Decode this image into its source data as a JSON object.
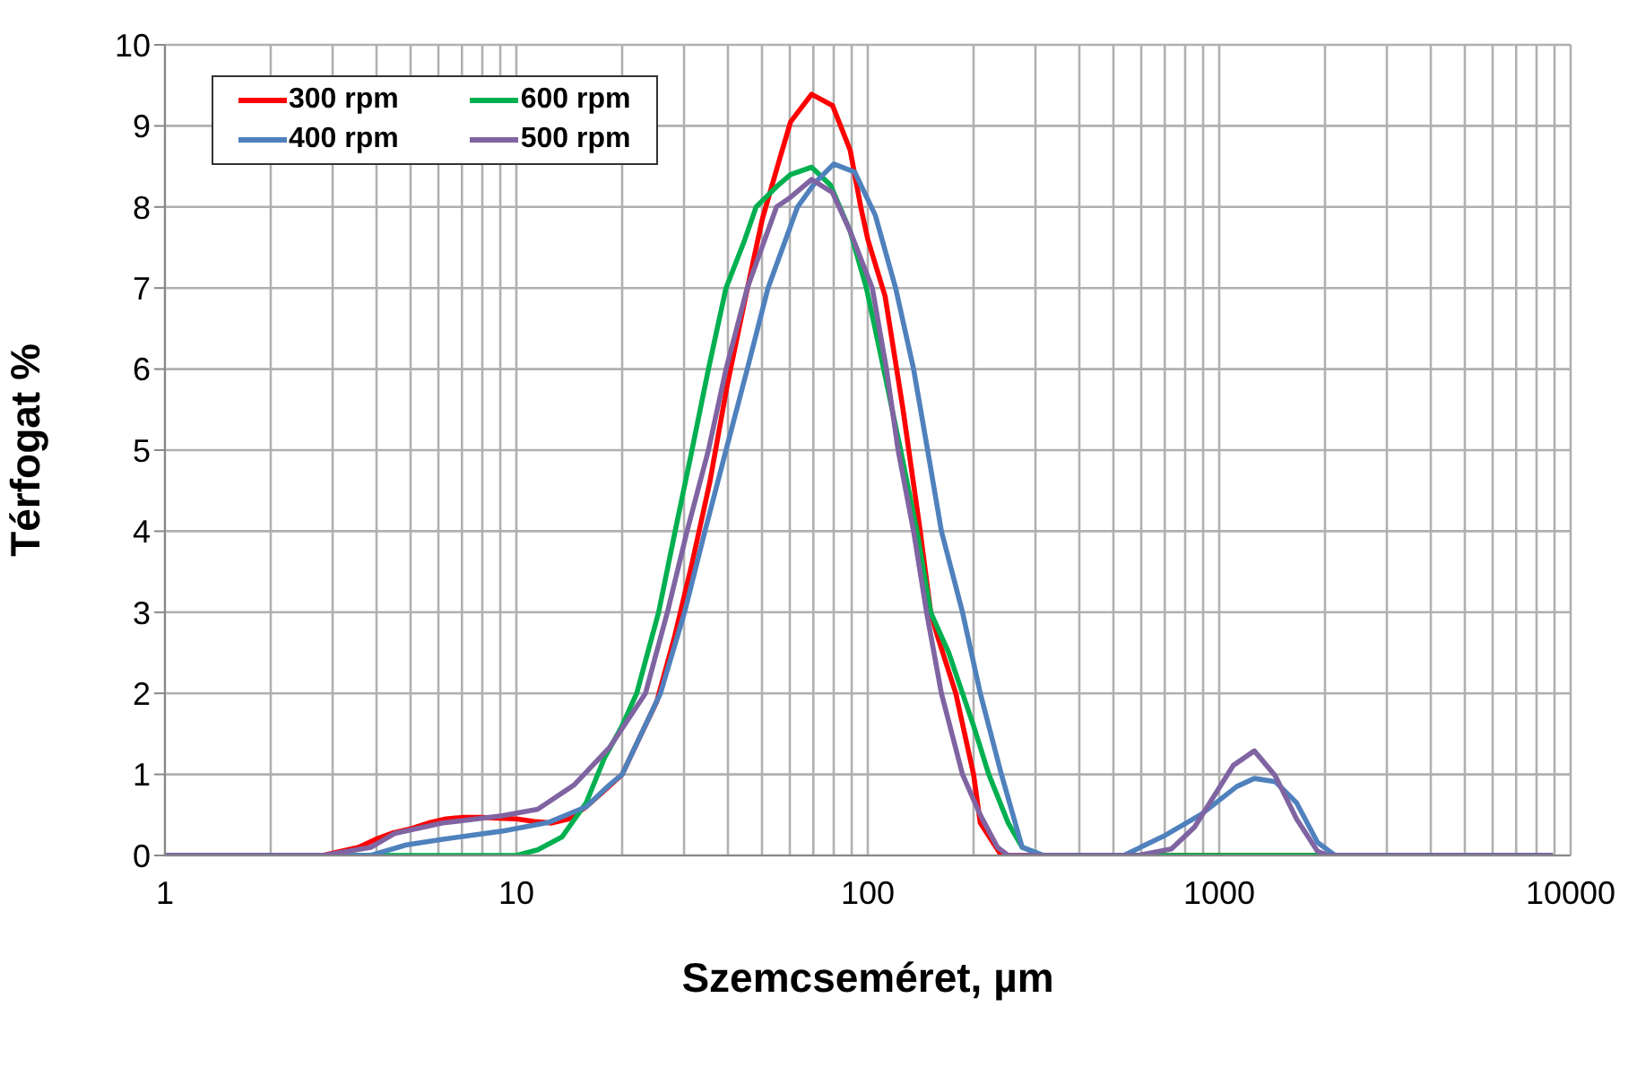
{
  "chart_data": {
    "type": "line",
    "xlabel": "Szemcseméret, µm",
    "ylabel": "Térfogat %",
    "log": "x",
    "grid": true,
    "legend": "top left",
    "marker": "none",
    "line_style": "solid",
    "xlim": [
      1,
      10000
    ],
    "ylim": [
      0,
      10
    ],
    "xticks": [
      1,
      {
        "value": 2,
        "label": null
      },
      {
        "value": 3,
        "label": null
      },
      {
        "value": 4,
        "label": null
      },
      {
        "value": 5,
        "label": null
      },
      {
        "value": 6,
        "label": null
      },
      {
        "value": 7,
        "label": null
      },
      {
        "value": 8,
        "label": null
      },
      {
        "value": 9,
        "label": null
      },
      10,
      {
        "value": 20,
        "label": null
      },
      {
        "value": 30,
        "label": null
      },
      {
        "value": 40,
        "label": null
      },
      {
        "value": 50,
        "label": null
      },
      {
        "value": 60,
        "label": null
      },
      {
        "value": 70,
        "label": null
      },
      {
        "value": 80,
        "label": null
      },
      {
        "value": 90,
        "label": null
      },
      100,
      {
        "value": 200,
        "label": null
      },
      {
        "value": 300,
        "label": null
      },
      {
        "value": 400,
        "label": null
      },
      {
        "value": 500,
        "label": null
      },
      {
        "value": 600,
        "label": null
      },
      {
        "value": 700,
        "label": null
      },
      {
        "value": 800,
        "label": null
      },
      {
        "value": 900,
        "label": null
      },
      1000,
      {
        "value": 2000,
        "label": null
      },
      {
        "value": 3000,
        "label": null
      },
      {
        "value": 4000,
        "label": null
      },
      {
        "value": 5000,
        "label": null
      },
      {
        "value": 6000,
        "label": null
      },
      {
        "value": 7000,
        "label": null
      },
      {
        "value": 8000,
        "label": null
      },
      {
        "value": 9000,
        "label": null
      },
      10000
    ],
    "yticks": [
      0,
      1,
      2,
      3,
      4,
      5,
      6,
      7,
      8,
      9,
      10
    ],
    "series": [
      {
        "name": "300 rpm",
        "color": "#ff0000",
        "x": [
          1,
          2.82,
          3.16,
          3.55,
          3.98,
          4.47,
          5.01,
          5.62,
          6.31,
          7.08,
          7.94,
          8.91,
          10,
          11.2,
          12.6,
          14.1,
          15.8,
          17.8,
          20,
          22.4,
          25.1,
          28.2,
          31.6,
          35.5,
          39.8,
          44.7,
          50.1,
          56.2,
          60.3,
          69.2,
          79.4,
          89.1,
          95.5,
          100,
          112,
          126,
          141,
          151,
          158,
          178,
          200,
          209,
          240,
          8900
        ],
        "values": [
          0,
          0,
          0.05,
          0.1,
          0.2,
          0.28,
          0.33,
          0.4,
          0.45,
          0.47,
          0.47,
          0.46,
          0.45,
          0.42,
          0.4,
          0.45,
          0.6,
          0.8,
          1.0,
          1.45,
          1.9,
          2.7,
          3.6,
          4.6,
          5.8,
          6.85,
          7.85,
          8.6,
          9.05,
          9.39,
          9.25,
          8.7,
          8.0,
          7.6,
          6.9,
          5.5,
          4.0,
          3.0,
          2.7,
          2.0,
          1.0,
          0.4,
          0,
          0
        ]
      },
      {
        "name": "600 rpm",
        "color": "#00b050",
        "x": [
          1,
          10,
          11.5,
          13.5,
          15.8,
          17.8,
          20,
          22,
          25.4,
          28.3,
          31.6,
          35.2,
          39.5,
          44.7,
          48.1,
          55,
          60.3,
          69.2,
          78.3,
          89.1,
          99.1,
          111,
          124,
          138,
          151,
          170,
          186,
          200,
          221,
          251,
          275,
          316,
          8900
        ],
        "values": [
          0,
          0,
          0.07,
          0.23,
          0.65,
          1.2,
          1.6,
          2.0,
          3.0,
          4.0,
          5.0,
          6.0,
          7.0,
          7.6,
          8.0,
          8.25,
          8.4,
          8.49,
          8.27,
          7.7,
          7.0,
          6.0,
          5.0,
          4.0,
          3.0,
          2.5,
          2.0,
          1.6,
          1.0,
          0.4,
          0.1,
          0,
          0
        ]
      },
      {
        "name": "400 rpm",
        "color": "#4f81bd",
        "x": [
          1,
          3.85,
          4.86,
          6.17,
          9.1,
          12.4,
          15.8,
          18.4,
          20,
          25.7,
          30.1,
          34.4,
          39.5,
          45.4,
          52,
          63.1,
          70.8,
          80,
          91.8,
          105,
          120,
          135,
          148,
          162,
          186,
          209,
          240,
          275,
          316,
          535,
          703,
          891,
          1122,
          1259,
          1445,
          1660,
          1905,
          2138,
          8900
        ],
        "values": [
          0,
          0,
          0.13,
          0.2,
          0.3,
          0.41,
          0.6,
          0.87,
          1.0,
          2.0,
          3.0,
          4.0,
          5.0,
          6.0,
          7.0,
          8.0,
          8.3,
          8.53,
          8.43,
          7.9,
          7.0,
          6.0,
          5.0,
          4.0,
          3.0,
          2.0,
          1.0,
          0.1,
          0,
          0,
          0.25,
          0.51,
          0.85,
          0.95,
          0.91,
          0.65,
          0.16,
          0,
          0
        ]
      },
      {
        "name": "500 rpm",
        "color": "#8064a2",
        "x": [
          1,
          2.82,
          3.85,
          4.5,
          6.17,
          9.1,
          11.5,
          14.6,
          18.4,
          23.3,
          26.9,
          30.6,
          35.2,
          39.5,
          45.4,
          55,
          60.3,
          69.2,
          79.3,
          89.1,
          103,
          113,
          122,
          135,
          147,
          162,
          186,
          209,
          234,
          251,
          589,
          731,
          851,
          1096,
          1259,
          1445,
          1660,
          1905,
          2042,
          8900
        ],
        "values": [
          0,
          0,
          0.1,
          0.27,
          0.4,
          0.49,
          0.57,
          0.87,
          1.33,
          2.0,
          3.0,
          4.0,
          5.0,
          6.0,
          7.0,
          8.0,
          8.12,
          8.34,
          8.18,
          7.7,
          7.0,
          6.0,
          5.0,
          4.0,
          3.0,
          2.0,
          1.0,
          0.5,
          0.1,
          0,
          0,
          0.08,
          0.35,
          1.11,
          1.29,
          0.98,
          0.45,
          0.05,
          0,
          0
        ]
      }
    ]
  }
}
